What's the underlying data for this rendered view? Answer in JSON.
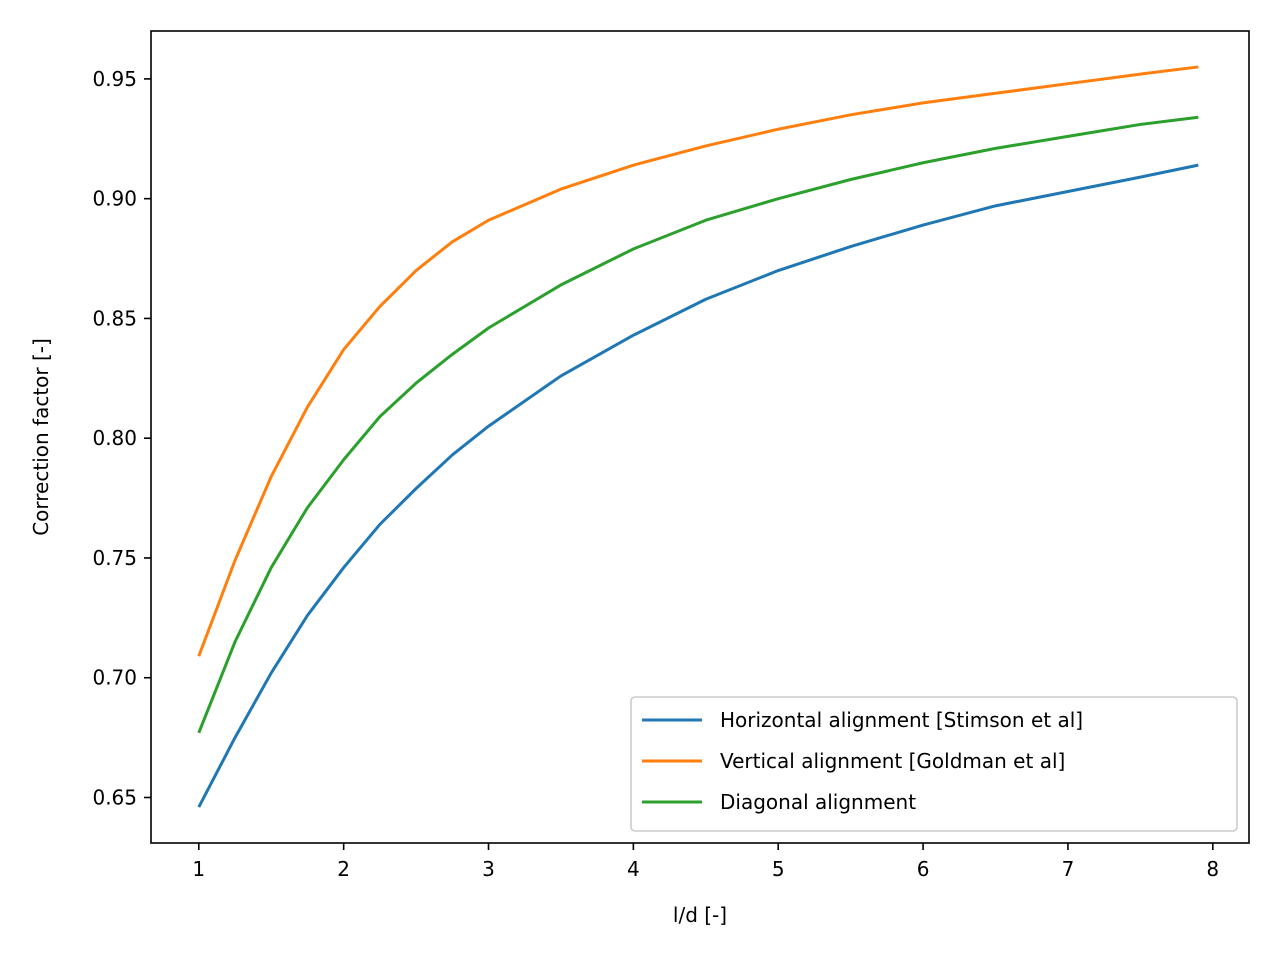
{
  "chart_data": {
    "type": "line",
    "title": "",
    "xlabel": "l/d [-]",
    "ylabel": "Correction factor [-]",
    "xlim": [
      0.67,
      8.25
    ],
    "ylim": [
      0.631,
      0.97
    ],
    "xticks": [
      1,
      2,
      3,
      4,
      5,
      6,
      7,
      8
    ],
    "yticks": [
      0.65,
      0.7,
      0.75,
      0.8,
      0.85,
      0.9,
      0.95
    ],
    "ytick_labels": [
      "0.65",
      "0.70",
      "0.75",
      "0.80",
      "0.85",
      "0.90",
      "0.95"
    ],
    "grid": false,
    "legend_position": "lower-right",
    "x": [
      1.0,
      1.25,
      1.5,
      1.75,
      2.0,
      2.25,
      2.5,
      2.75,
      3.0,
      3.5,
      4.0,
      4.5,
      5.0,
      5.5,
      6.0,
      6.5,
      7.0,
      7.5,
      7.9
    ],
    "series": [
      {
        "name": "Horizontal alignment [Stimson et al]",
        "color": "#1f77b4",
        "values": [
          0.646,
          0.675,
          0.702,
          0.726,
          0.746,
          0.764,
          0.779,
          0.793,
          0.805,
          0.826,
          0.843,
          0.858,
          0.87,
          0.88,
          0.889,
          0.897,
          0.903,
          0.909,
          0.914
        ]
      },
      {
        "name": "Vertical alignment [Goldman et al]",
        "color": "#ff7f0e",
        "values": [
          0.709,
          0.749,
          0.784,
          0.813,
          0.837,
          0.855,
          0.87,
          0.882,
          0.891,
          0.904,
          0.914,
          0.922,
          0.929,
          0.935,
          0.94,
          0.944,
          0.948,
          0.952,
          0.955
        ]
      },
      {
        "name": "Diagonal alignment",
        "color": "#2ca02c",
        "values": [
          0.677,
          0.715,
          0.746,
          0.771,
          0.791,
          0.809,
          0.823,
          0.835,
          0.846,
          0.864,
          0.879,
          0.891,
          0.9,
          0.908,
          0.915,
          0.921,
          0.926,
          0.931,
          0.934
        ]
      }
    ]
  }
}
